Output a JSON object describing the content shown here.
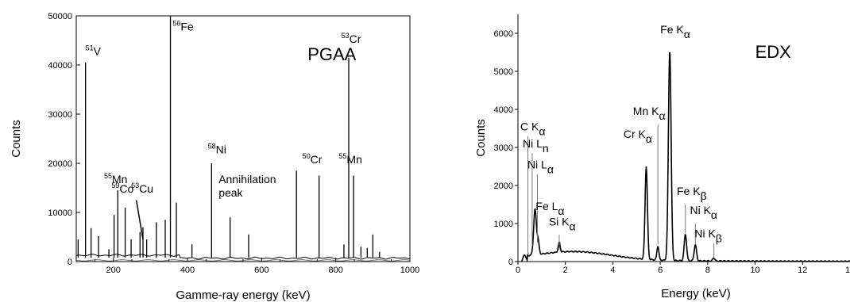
{
  "chart_data": [
    {
      "type": "line",
      "panel_label": "PGAA",
      "xlabel": "Gamme-ray energy (keV)",
      "ylabel": "Counts",
      "xlim": [
        100,
        1000
      ],
      "ylim": [
        0,
        50000
      ],
      "x_ticks": [
        200,
        400,
        600,
        800,
        1000
      ],
      "y_ticks": [
        0,
        10000,
        20000,
        30000,
        40000,
        50000
      ],
      "peaks": [
        {
          "x": 105,
          "y": 4500
        },
        {
          "x": 125,
          "y": 40500
        },
        {
          "x": 140,
          "y": 6800
        },
        {
          "x": 160,
          "y": 5200
        },
        {
          "x": 188,
          "y": 2500
        },
        {
          "x": 202,
          "y": 9500
        },
        {
          "x": 212,
          "y": 14500
        },
        {
          "x": 232,
          "y": 11000
        },
        {
          "x": 248,
          "y": 4500
        },
        {
          "x": 272,
          "y": 6000
        },
        {
          "x": 280,
          "y": 7000
        },
        {
          "x": 290,
          "y": 4500
        },
        {
          "x": 316,
          "y": 8000
        },
        {
          "x": 340,
          "y": 8500
        },
        {
          "x": 354,
          "y": 50000
        },
        {
          "x": 370,
          "y": 12000
        },
        {
          "x": 412,
          "y": 3500
        },
        {
          "x": 465,
          "y": 20000
        },
        {
          "x": 515,
          "y": 9000
        },
        {
          "x": 565,
          "y": 5500
        },
        {
          "x": 694,
          "y": 18500
        },
        {
          "x": 755,
          "y": 17500
        },
        {
          "x": 822,
          "y": 3500
        },
        {
          "x": 835,
          "y": 41500
        },
        {
          "x": 848,
          "y": 17500
        },
        {
          "x": 868,
          "y": 3000
        },
        {
          "x": 885,
          "y": 2800
        },
        {
          "x": 900,
          "y": 5500
        },
        {
          "x": 918,
          "y": 2000
        }
      ],
      "labels": [
        {
          "text": "51V",
          "sup": "51",
          "base": "V",
          "x": 125,
          "y": 42000
        },
        {
          "text": "56Fe",
          "sup": "56",
          "base": "Fe",
          "x": 360,
          "y": 47000
        },
        {
          "text": "53Cr",
          "sup": "53",
          "base": "Cr",
          "x": 815,
          "y": 44500
        },
        {
          "text": "58Ni",
          "sup": "58",
          "base": "Ni",
          "x": 455,
          "y": 22000
        },
        {
          "text": "55Mn",
          "sup": "55",
          "base": "Mn",
          "x": 175,
          "y": 16000
        },
        {
          "text": "59Co",
          "sup": "59",
          "base": "Co",
          "x": 195,
          "y": 14000
        },
        {
          "text": "63Cu",
          "sup": "63",
          "base": "Cu",
          "x": 248,
          "y": 14000
        },
        {
          "text": "50Cr",
          "sup": "50",
          "base": "Cr",
          "x": 710,
          "y": 20000
        },
        {
          "text": "55Mn",
          "sup": "55",
          "base": "Mn",
          "x": 808,
          "y": 20000
        }
      ],
      "annotation_lines": [
        "Annihilation",
        "peak"
      ],
      "annotation_xy": [
        484,
        16000
      ]
    },
    {
      "type": "line",
      "panel_label": "EDX",
      "xlabel": "Energy (keV)",
      "ylabel": "Counts",
      "xlim": [
        0,
        14
      ],
      "ylim": [
        0,
        6500
      ],
      "x_ticks": [
        0,
        2,
        4,
        6,
        8,
        10,
        12
      ],
      "x_tick_label_edge": "1",
      "y_ticks": [
        0,
        1000,
        2000,
        3000,
        4000,
        5000,
        6000
      ],
      "peaks": [
        {
          "x": 0.28,
          "y": 180,
          "w": 0.08
        },
        {
          "x": 0.72,
          "y": 1200,
          "w": 0.08
        },
        {
          "x": 0.85,
          "y": 350,
          "w": 0.06
        },
        {
          "x": 1.74,
          "y": 250,
          "w": 0.06
        },
        {
          "x": 5.41,
          "y": 2450,
          "w": 0.07
        },
        {
          "x": 5.9,
          "y": 370,
          "w": 0.06
        },
        {
          "x": 6.4,
          "y": 5550,
          "w": 0.08
        },
        {
          "x": 7.06,
          "y": 700,
          "w": 0.07
        },
        {
          "x": 7.48,
          "y": 420,
          "w": 0.07
        },
        {
          "x": 8.26,
          "y": 80,
          "w": 0.06
        }
      ],
      "labels": [
        {
          "parts": [
            "C K",
            "α"
          ],
          "x": 0.1,
          "y": 3450
        },
        {
          "parts": [
            "Ni L",
            "n"
          ],
          "x": 0.2,
          "y": 3000
        },
        {
          "parts": [
            "Ni L",
            "α"
          ],
          "x": 0.4,
          "y": 2450
        },
        {
          "parts": [
            "Fe L",
            "α"
          ],
          "x": 0.75,
          "y": 1350
        },
        {
          "parts": [
            "Si K",
            "α"
          ],
          "x": 1.3,
          "y": 950
        },
        {
          "parts": [
            "Mn K",
            "α"
          ],
          "x": 4.85,
          "y": 3850
        },
        {
          "parts": [
            "Cr K",
            "α"
          ],
          "x": 4.45,
          "y": 3250
        },
        {
          "parts": [
            "Fe K",
            "α"
          ],
          "x": 6.0,
          "y": 6000
        },
        {
          "parts": [
            "Fe K",
            "β"
          ],
          "x": 6.7,
          "y": 1750
        },
        {
          "parts": [
            "Ni K",
            "α"
          ],
          "x": 7.25,
          "y": 1250
        },
        {
          "parts": [
            "Ni K",
            "β"
          ],
          "x": 7.45,
          "y": 640
        }
      ]
    }
  ]
}
